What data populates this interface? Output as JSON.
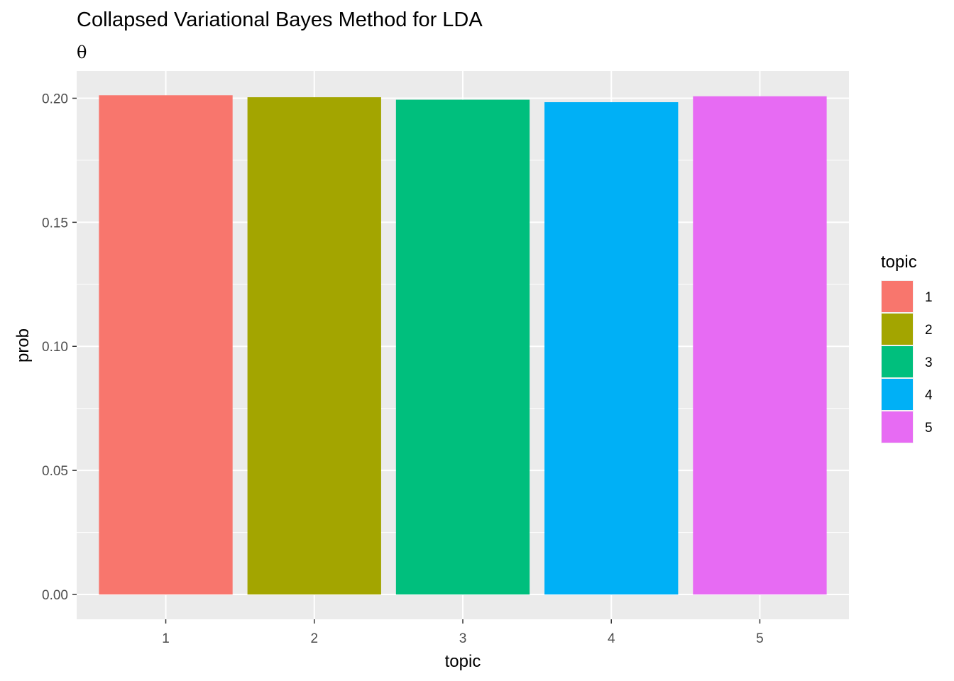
{
  "chart_data": {
    "type": "bar",
    "title": "Collapsed Variational Bayes Method for LDA",
    "subtitle": "θ",
    "xlabel": "topic",
    "ylabel": "prob",
    "categories": [
      "1",
      "2",
      "3",
      "4",
      "5"
    ],
    "values": [
      0.2012,
      0.2004,
      0.1994,
      0.1984,
      0.2008
    ],
    "colors": [
      "#F8766D",
      "#A3A500",
      "#00BF7D",
      "#00B0F6",
      "#E76BF3"
    ],
    "ylim": [
      -0.01,
      0.211
    ],
    "yticks": [
      0.0,
      0.05,
      0.1,
      0.15,
      0.2
    ],
    "ytick_labels": [
      "0.00",
      "0.05",
      "0.10",
      "0.15",
      "0.20"
    ],
    "grid": true,
    "legend": {
      "title": "topic",
      "placement": "right",
      "entries": [
        "1",
        "2",
        "3",
        "4",
        "5"
      ]
    }
  }
}
